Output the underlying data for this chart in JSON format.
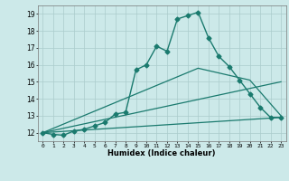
{
  "title": "",
  "xlabel": "Humidex (Indice chaleur)",
  "ylabel": "",
  "background_color": "#cce9e9",
  "grid_color": "#aacccc",
  "line_color": "#1a7a6e",
  "xlim": [
    -0.5,
    23.5
  ],
  "ylim": [
    11.5,
    19.5
  ],
  "xticks": [
    0,
    1,
    2,
    3,
    4,
    5,
    6,
    7,
    8,
    9,
    10,
    11,
    12,
    13,
    14,
    15,
    16,
    17,
    18,
    19,
    20,
    21,
    22,
    23
  ],
  "yticks": [
    12,
    13,
    14,
    15,
    16,
    17,
    18,
    19
  ],
  "series": [
    {
      "x": [
        0,
        1,
        2,
        3,
        4,
        5,
        6,
        7,
        8,
        9,
        10,
        11,
        12,
        13,
        14,
        15,
        16,
        17,
        18,
        19,
        20,
        21,
        22,
        23
      ],
      "y": [
        12,
        11.9,
        11.85,
        12.1,
        12.2,
        12.4,
        12.6,
        13.1,
        13.2,
        15.7,
        16.0,
        17.1,
        16.8,
        18.7,
        18.9,
        19.1,
        17.6,
        16.5,
        15.9,
        15.1,
        14.3,
        13.5,
        12.9,
        12.9
      ],
      "marker": "D",
      "markersize": 2.5,
      "linewidth": 1.0
    },
    {
      "x": [
        0,
        15,
        20,
        23
      ],
      "y": [
        12,
        15.8,
        15.1,
        13.0
      ],
      "marker": null,
      "markersize": 0,
      "linewidth": 0.9
    },
    {
      "x": [
        0,
        23
      ],
      "y": [
        12,
        15.0
      ],
      "marker": null,
      "markersize": 0,
      "linewidth": 0.9
    },
    {
      "x": [
        0,
        23
      ],
      "y": [
        12,
        12.9
      ],
      "marker": null,
      "markersize": 0,
      "linewidth": 0.9
    }
  ]
}
